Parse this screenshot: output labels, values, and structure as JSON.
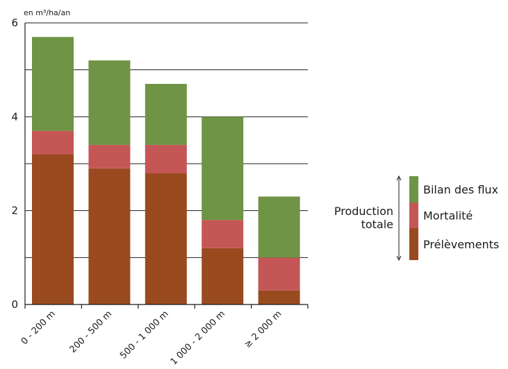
{
  "chart_data": {
    "type": "bar",
    "stacked": true,
    "unit_label": "en m³/ha/an",
    "categories": [
      "0 - 200 m",
      "200 - 500 m",
      "500 - 1 000 m",
      "1 000 - 2 000 m",
      "≥ 2 000 m"
    ],
    "series": [
      {
        "name": "Prélèvements",
        "color": "#9a4a1f",
        "values": [
          3.2,
          2.9,
          2.8,
          1.2,
          0.3
        ]
      },
      {
        "name": "Mortalité",
        "color": "#c55656",
        "values": [
          0.5,
          0.5,
          0.6,
          0.6,
          0.7
        ]
      },
      {
        "name": "Bilan des flux",
        "color": "#6f9445",
        "values": [
          2.0,
          1.8,
          1.3,
          2.2,
          1.3
        ]
      }
    ],
    "ylim": [
      0,
      6
    ],
    "y_ticks": [
      0,
      2,
      4,
      6
    ],
    "y_gridlines": [
      1,
      2,
      3,
      4,
      5,
      6
    ],
    "grid": true,
    "legend_position": "right",
    "legend_bracket_label": [
      "Production",
      "totale"
    ],
    "legend_order": [
      "Bilan des flux",
      "Mortalité",
      "Prélèvements"
    ]
  }
}
